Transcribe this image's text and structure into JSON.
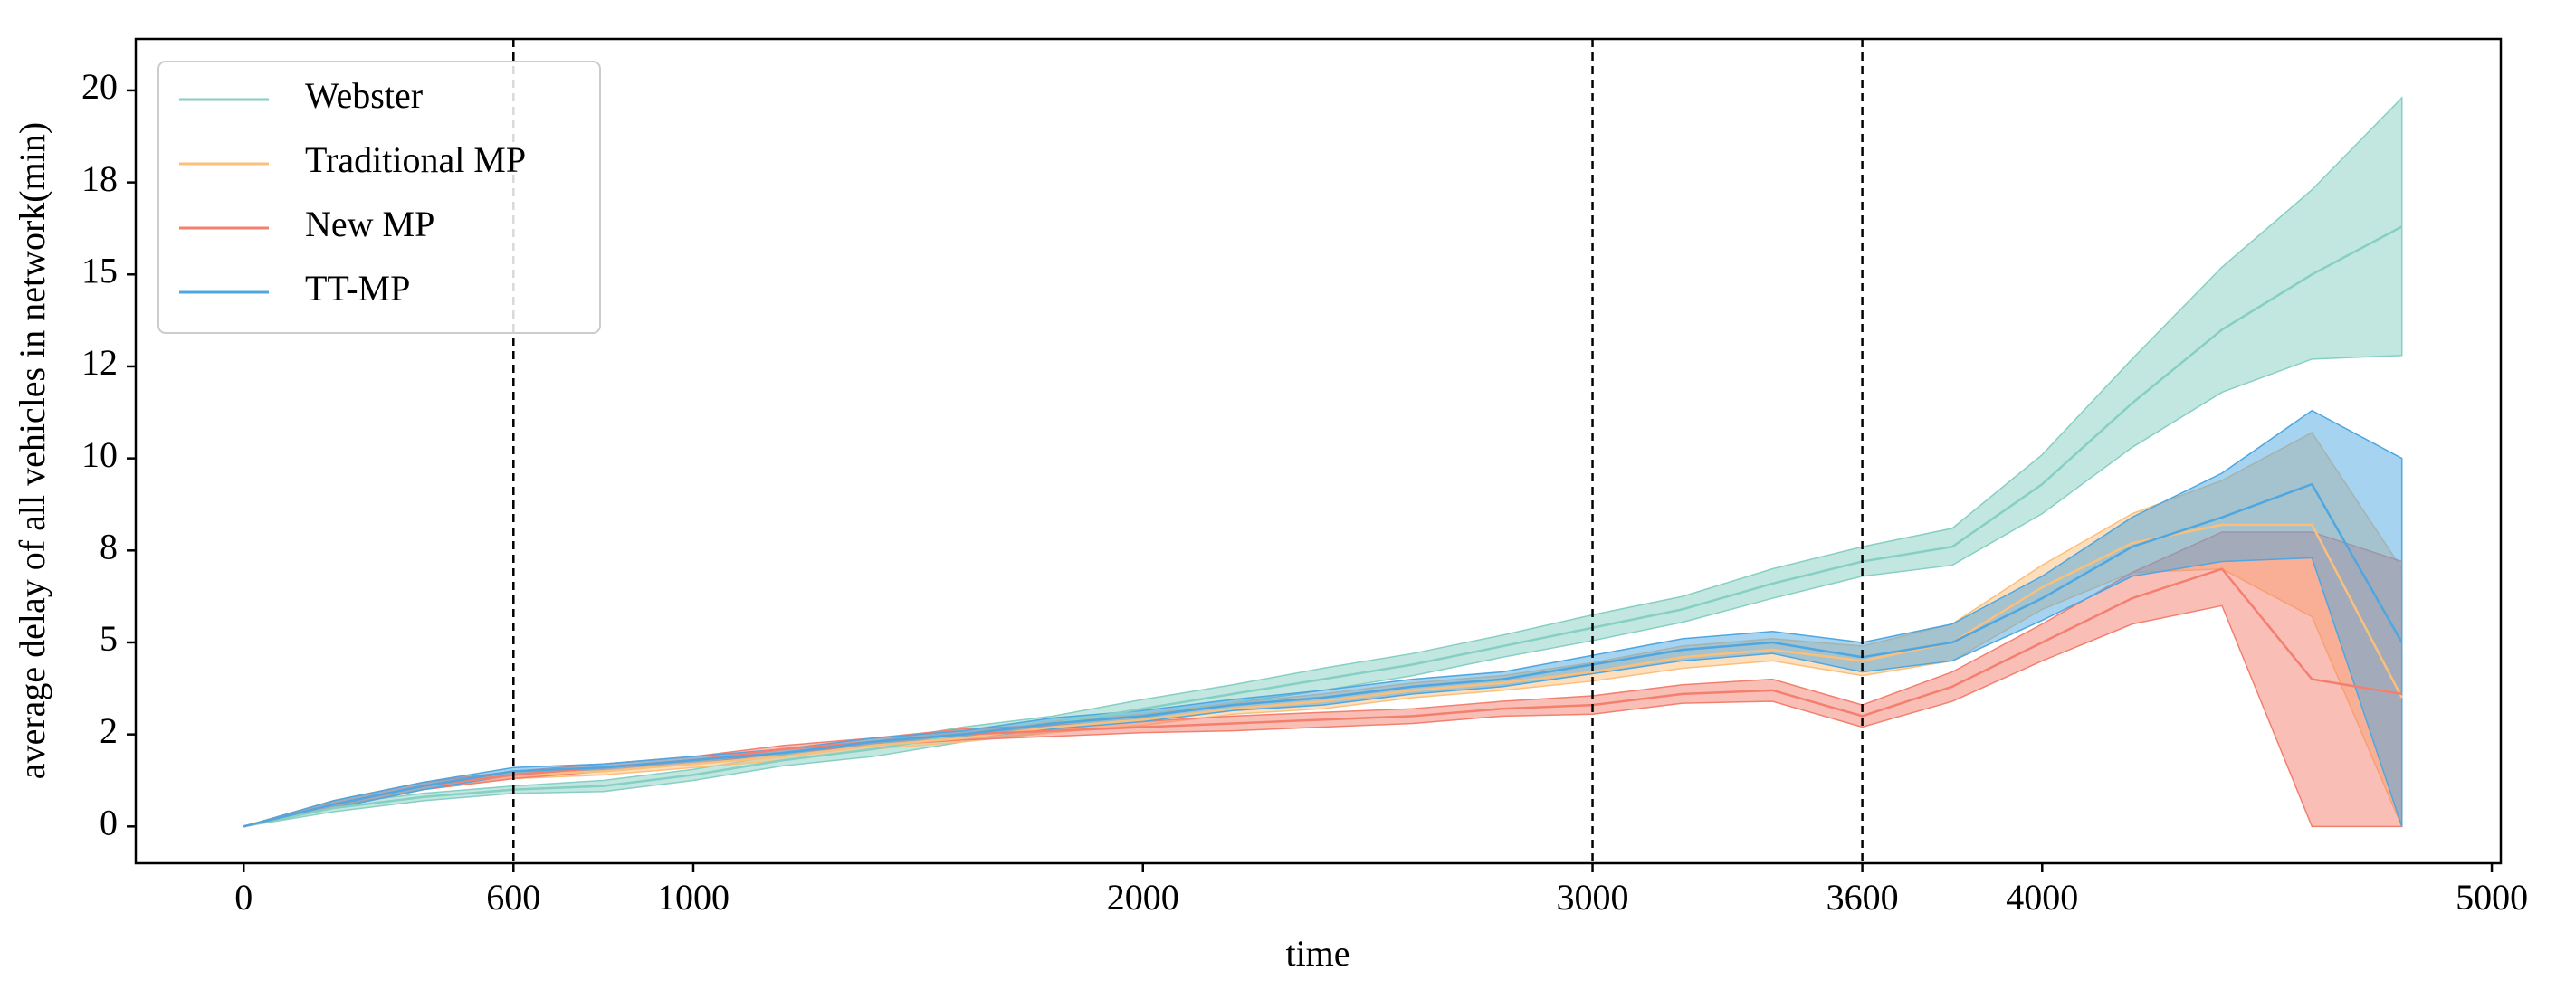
{
  "chart_data": {
    "type": "line",
    "xlabel": "time",
    "ylabel": "average delay of all vehicles in network(min)",
    "x": [
      0,
      200,
      400,
      600,
      800,
      1000,
      1200,
      1400,
      1600,
      1800,
      2000,
      2200,
      2400,
      2600,
      2800,
      3000,
      3200,
      3400,
      3600,
      3800,
      4000,
      4200,
      4400,
      4600,
      4800
    ],
    "series": [
      {
        "name": "Webster",
        "color": "#86cfc3",
        "values": [
          0,
          0.5,
          0.8,
          1.0,
          1.1,
          1.4,
          1.8,
          2.1,
          2.5,
          2.8,
          3.2,
          3.6,
          4.0,
          4.4,
          4.9,
          5.4,
          5.9,
          6.6,
          7.2,
          7.6,
          9.3,
          11.5,
          13.5,
          15.0,
          16.3
        ],
        "lower": [
          0,
          0.4,
          0.7,
          0.9,
          0.95,
          1.25,
          1.65,
          1.9,
          2.3,
          2.6,
          2.95,
          3.35,
          3.7,
          4.1,
          4.6,
          5.05,
          5.55,
          6.2,
          6.8,
          7.1,
          8.5,
          10.3,
          11.8,
          12.7,
          12.8
        ],
        "upper": [
          0,
          0.6,
          0.9,
          1.1,
          1.25,
          1.55,
          1.95,
          2.3,
          2.7,
          3.0,
          3.45,
          3.85,
          4.3,
          4.7,
          5.2,
          5.75,
          6.25,
          7.0,
          7.6,
          8.1,
          10.1,
          12.7,
          15.2,
          17.3,
          19.8
        ]
      },
      {
        "name": "Traditional MP",
        "color": "#fbbf7c",
        "values": [
          0,
          0.6,
          1.1,
          1.4,
          1.5,
          1.7,
          1.9,
          2.2,
          2.4,
          2.7,
          2.9,
          3.2,
          3.4,
          3.7,
          3.9,
          4.2,
          4.6,
          4.8,
          4.5,
          5.0,
          6.5,
          7.7,
          8.2,
          8.2,
          3.5
        ],
        "lower": [
          0,
          0.5,
          1.0,
          1.3,
          1.4,
          1.6,
          1.8,
          2.1,
          2.3,
          2.55,
          2.75,
          3.05,
          3.2,
          3.5,
          3.7,
          3.95,
          4.3,
          4.5,
          4.1,
          4.5,
          5.9,
          6.9,
          7.0,
          5.7,
          0
        ],
        "upper": [
          0,
          0.7,
          1.2,
          1.5,
          1.6,
          1.8,
          2.0,
          2.3,
          2.5,
          2.85,
          3.05,
          3.35,
          3.6,
          3.9,
          4.1,
          4.45,
          4.9,
          5.1,
          4.9,
          5.5,
          7.1,
          8.5,
          9.4,
          10.7,
          7.0
        ]
      },
      {
        "name": "New MP",
        "color": "#f47f6e",
        "values": [
          0,
          0.6,
          1.1,
          1.4,
          1.6,
          1.8,
          2.1,
          2.3,
          2.5,
          2.6,
          2.7,
          2.8,
          2.9,
          3.0,
          3.2,
          3.3,
          3.6,
          3.7,
          3.0,
          3.8,
          5.0,
          6.2,
          7.0,
          4.0,
          3.6
        ],
        "lower": [
          0,
          0.5,
          1.0,
          1.3,
          1.5,
          1.7,
          2.0,
          2.2,
          2.35,
          2.45,
          2.55,
          2.6,
          2.7,
          2.8,
          3.0,
          3.05,
          3.35,
          3.4,
          2.7,
          3.4,
          4.5,
          5.5,
          6.0,
          0,
          0
        ],
        "upper": [
          0,
          0.7,
          1.2,
          1.5,
          1.7,
          1.9,
          2.2,
          2.4,
          2.65,
          2.75,
          2.85,
          3.0,
          3.1,
          3.2,
          3.4,
          3.55,
          3.85,
          4.0,
          3.3,
          4.2,
          5.5,
          6.9,
          8.0,
          8.0,
          7.2
        ]
      },
      {
        "name": "TT-MP",
        "color": "#4ea7e0",
        "values": [
          0,
          0.6,
          1.1,
          1.5,
          1.6,
          1.8,
          2.0,
          2.3,
          2.5,
          2.8,
          3.0,
          3.3,
          3.5,
          3.8,
          4.0,
          4.4,
          4.8,
          5.0,
          4.6,
          5.0,
          6.2,
          7.6,
          8.4,
          9.3,
          5.0
        ],
        "lower": [
          0,
          0.5,
          1.0,
          1.4,
          1.5,
          1.7,
          1.9,
          2.2,
          2.4,
          2.65,
          2.85,
          3.15,
          3.3,
          3.6,
          3.8,
          4.15,
          4.5,
          4.7,
          4.2,
          4.5,
          5.6,
          6.8,
          7.2,
          7.3,
          0
        ],
        "upper": [
          0,
          0.7,
          1.2,
          1.6,
          1.7,
          1.9,
          2.1,
          2.4,
          2.6,
          2.95,
          3.15,
          3.45,
          3.7,
          4.0,
          4.2,
          4.65,
          5.1,
          5.3,
          5.0,
          5.5,
          6.8,
          8.4,
          9.6,
          11.3,
          10.0
        ]
      }
    ],
    "vlines": [
      600,
      3000,
      3600
    ],
    "xlim": [
      -240,
      5020
    ],
    "ylim": [
      -1.0,
      21.4
    ],
    "xticks": [
      0,
      600,
      1000,
      2000,
      3000,
      3600,
      4000,
      5000
    ],
    "yticks": [
      0,
      {
        "value": 2.5,
        "label": "2"
      },
      5,
      {
        "value": 7.5,
        "label": "8"
      },
      10,
      {
        "value": 12.5,
        "label": "12"
      },
      15,
      {
        "value": 17.5,
        "label": "18"
      },
      20
    ],
    "legend": "upper left"
  }
}
